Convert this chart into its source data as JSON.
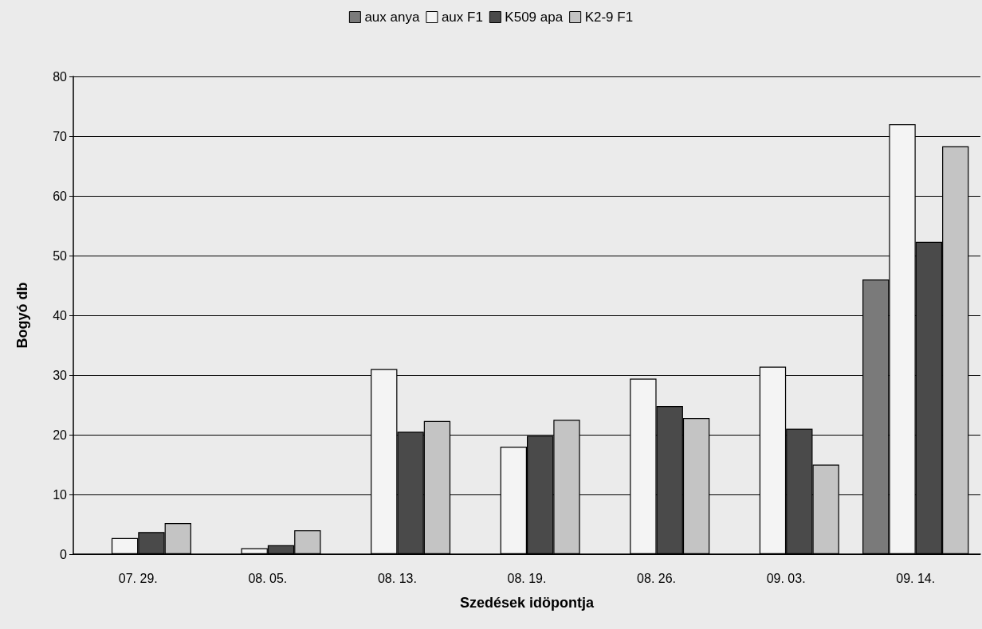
{
  "chart_data": {
    "type": "bar",
    "xlabel": "Szedések idöpontja",
    "ylabel": "Bogyó db",
    "categories": [
      "07. 29.",
      "08. 05.",
      "08. 13.",
      "08. 19.",
      "08. 26.",
      "09. 03.",
      "09. 14."
    ],
    "series": [
      {
        "name": "aux anya",
        "color": "#7a7a7a",
        "values": [
          null,
          null,
          null,
          null,
          null,
          null,
          46
        ]
      },
      {
        "name": "aux F1",
        "color": "#f4f4f4",
        "values": [
          2.7,
          1,
          31,
          18,
          29.4,
          31.4,
          72
        ]
      },
      {
        "name": "K509 apa",
        "color": "#4a4a4a",
        "values": [
          3.7,
          1.5,
          20.5,
          19.8,
          24.8,
          21,
          52.3
        ]
      },
      {
        "name": "K2-9 F1",
        "color": "#c4c4c4",
        "values": [
          5.2,
          4,
          22.3,
          22.5,
          22.8,
          15,
          68.3
        ]
      }
    ],
    "ylim": [
      0,
      80
    ],
    "yticks": [
      0,
      10,
      20,
      30,
      40,
      50,
      60,
      70,
      80
    ],
    "grid": "y",
    "legend": "top"
  }
}
